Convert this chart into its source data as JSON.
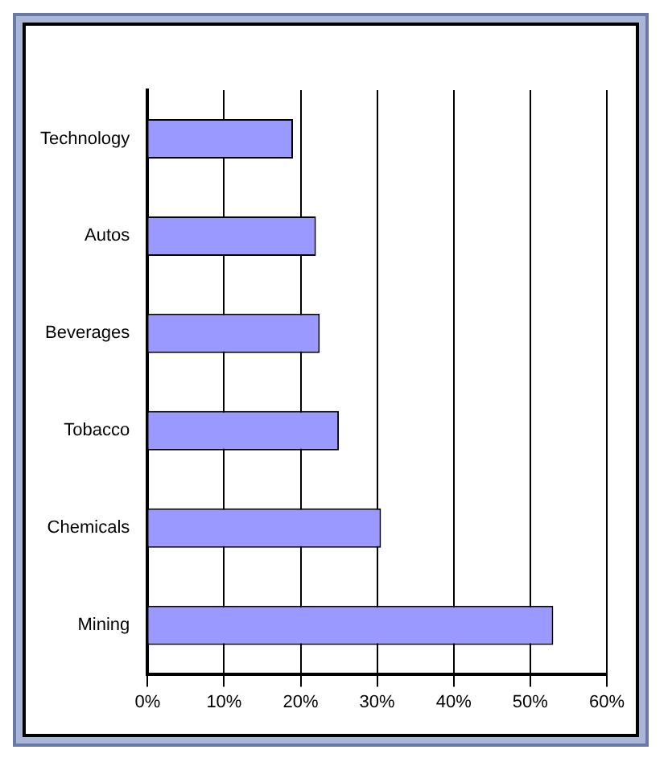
{
  "chart_data": {
    "type": "bar",
    "orientation": "horizontal",
    "categories": [
      "Technology",
      "Autos",
      "Beverages",
      "Tobacco",
      "Chemicals",
      "Mining"
    ],
    "values": [
      19,
      22,
      22.5,
      25,
      30.5,
      53
    ],
    "color": "#9999ff",
    "xlim": [
      0,
      60
    ],
    "xticks": [
      {
        "value": 0,
        "label": "0%"
      },
      {
        "value": 10,
        "label": "10%"
      },
      {
        "value": 20,
        "label": "20%"
      },
      {
        "value": 30,
        "label": "30%"
      },
      {
        "value": 40,
        "label": "40%"
      },
      {
        "value": 50,
        "label": "50%"
      },
      {
        "value": 60,
        "label": "60%"
      }
    ],
    "grid": "x"
  }
}
